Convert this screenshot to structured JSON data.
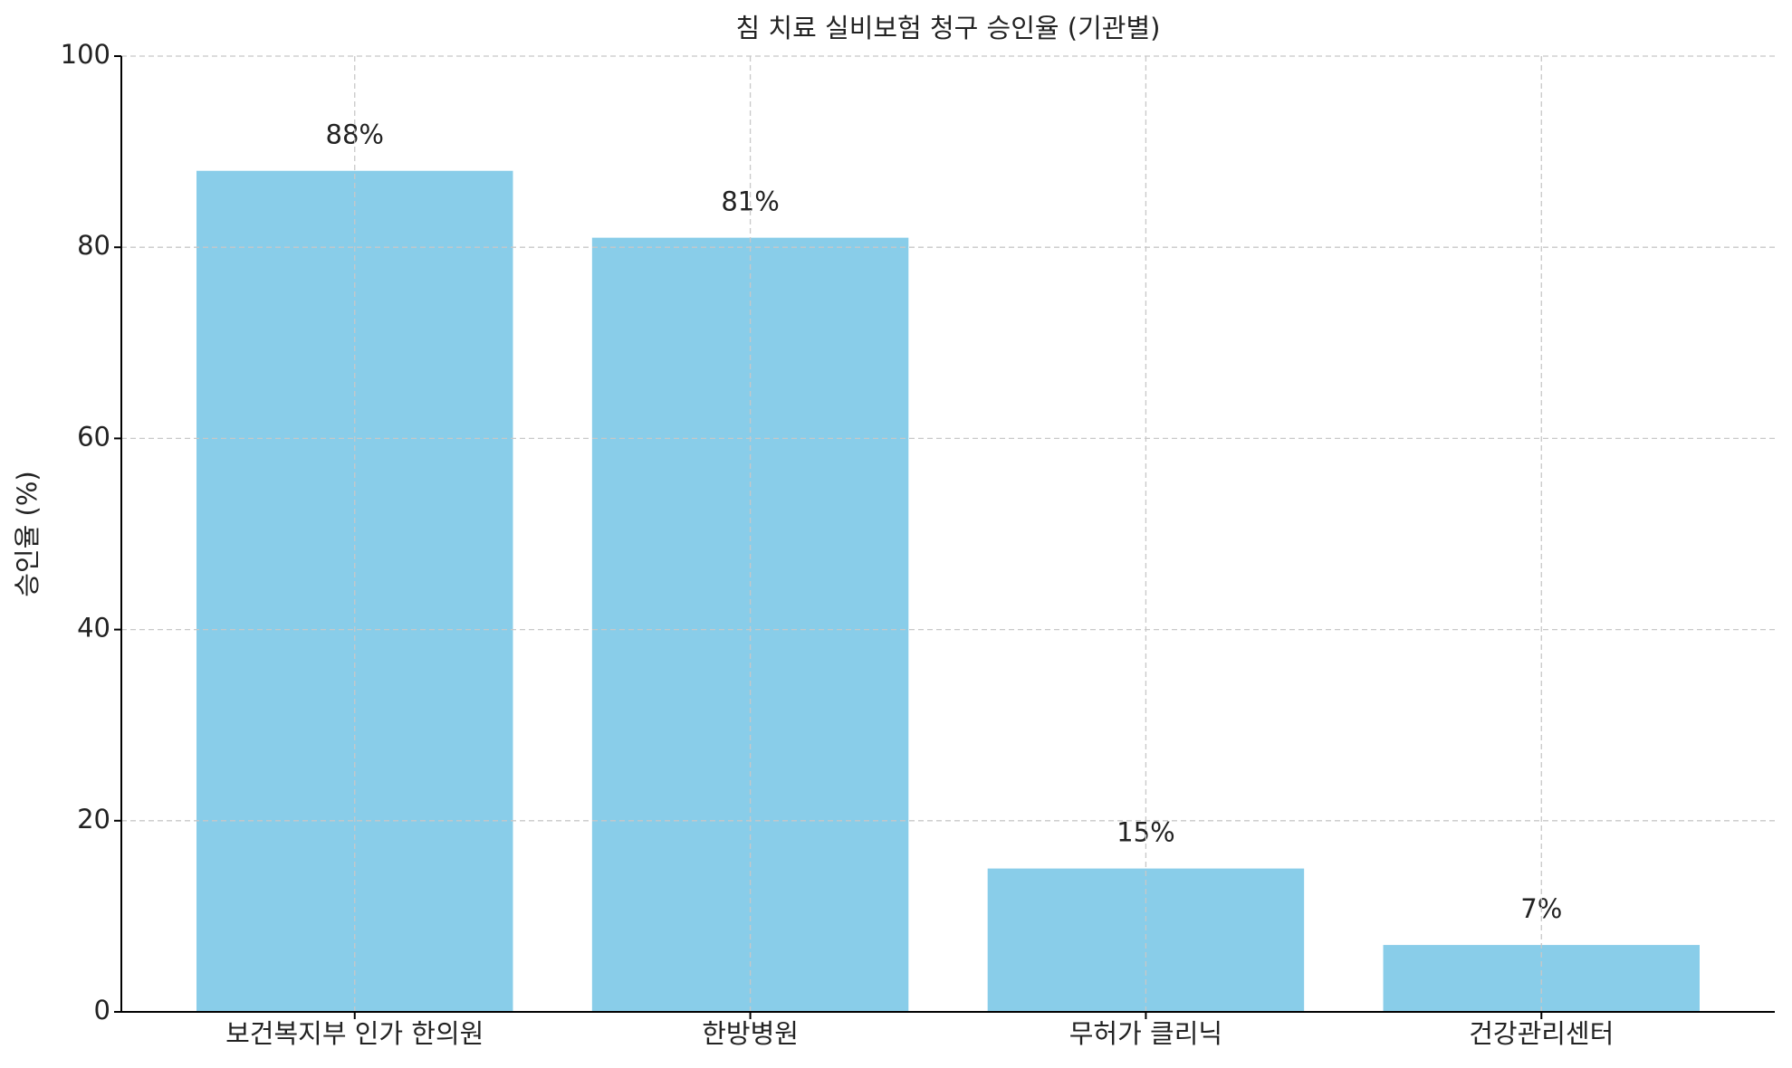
{
  "chart_data": {
    "type": "bar",
    "title": "침 치료 실비보험 청구 승인율 (기관별)",
    "y_label": "승인율 (%)",
    "categories": [
      "보건복지부 인가 한의원",
      "한방병원",
      "무허가 클리닉",
      "건강관리센터"
    ],
    "values": [
      88,
      81,
      15,
      7
    ],
    "value_labels": [
      "88%",
      "81%",
      "15%",
      "7%"
    ],
    "color": "#89cde9",
    "ylim": [
      0,
      100
    ],
    "yticks": [
      0,
      20,
      40,
      60,
      80,
      100
    ],
    "grid": true
  }
}
